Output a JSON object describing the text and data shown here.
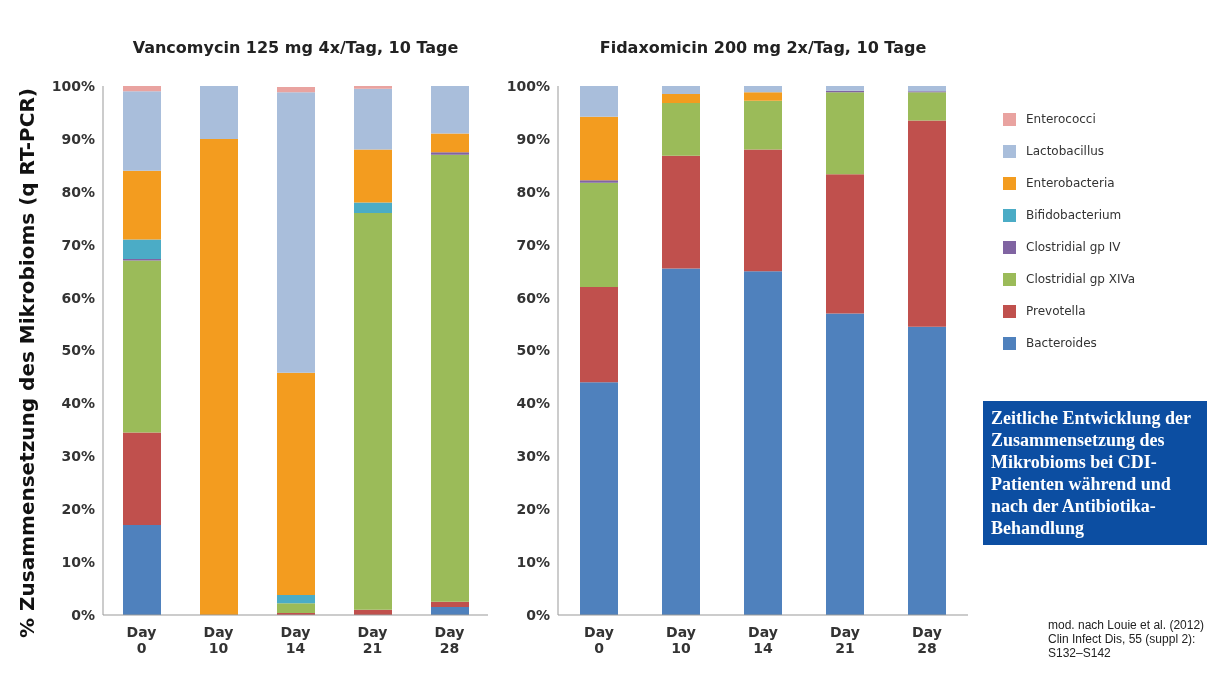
{
  "chart_data": [
    {
      "type": "bar",
      "title": "Vancomycin 125 mg 4x/Tag, 10 Tage",
      "ylabel": "% Zusammensetzung des Mikrobioms (q RT-PCR)",
      "categories": [
        "Day 0",
        "Day 10",
        "Day 14",
        "Day 21",
        "Day 28"
      ],
      "stacked": true,
      "ylim": [
        0,
        100
      ],
      "yticks": [
        {
          "value": 0,
          "label": "0%"
        },
        {
          "value": 10,
          "label": "10%"
        },
        {
          "value": 20,
          "label": "20%"
        },
        {
          "value": 30,
          "label": "30%"
        },
        {
          "value": 40,
          "label": "40%"
        },
        {
          "value": 50,
          "label": "50%"
        },
        {
          "value": 60,
          "label": "60%"
        },
        {
          "value": 70,
          "label": "70%"
        },
        {
          "value": 80,
          "label": "80%"
        },
        {
          "value": 90,
          "label": "90%"
        },
        {
          "value": 100,
          "label": "100%"
        }
      ],
      "series": [
        {
          "color": "#4f81bd",
          "values": [
            17,
            0,
            null,
            0,
            1.5
          ]
        },
        {
          "color": "#c0504d",
          "values": [
            17.5,
            0,
            0.4,
            1,
            1
          ]
        },
        {
          "color": "#9bbb59",
          "values": [
            32.5,
            0,
            1.8,
            75,
            84.5
          ]
        },
        {
          "color": "#8064a2",
          "values": [
            0.3,
            0,
            0,
            0,
            0.5
          ]
        },
        {
          "color": "#4bacc6",
          "values": [
            3.7,
            0,
            1.6,
            2,
            0
          ]
        },
        {
          "color": "#f39c1f",
          "values": [
            13,
            90,
            42,
            10,
            3.5
          ]
        },
        {
          "color": "#a9bedb",
          "values": [
            15,
            10,
            53,
            11.5,
            9
          ]
        },
        {
          "color": "#e9a3a0",
          "values": [
            1,
            0,
            1,
            0.5,
            0
          ]
        }
      ],
      "legend": false
    },
    {
      "type": "bar",
      "title": "Fidaxomicin 200 mg 2x/Tag, 10 Tage",
      "categories": [
        "Day 0",
        "Day 10",
        "Day 14",
        "Day 21",
        "Day 28"
      ],
      "stacked": true,
      "ylim": [
        0,
        100
      ],
      "yticks": [
        {
          "value": 0,
          "label": "0%"
        },
        {
          "value": 10,
          "label": "10%"
        },
        {
          "value": 20,
          "label": "20%"
        },
        {
          "value": 30,
          "label": "30%"
        },
        {
          "value": 40,
          "label": "40%"
        },
        {
          "value": 50,
          "label": "50%"
        },
        {
          "value": 60,
          "label": "60%"
        },
        {
          "value": 70,
          "label": "70%"
        },
        {
          "value": 80,
          "label": "80%"
        },
        {
          "value": 90,
          "label": "90%"
        },
        {
          "value": 100,
          "label": "100%"
        }
      ],
      "series": [
        {
          "name": "Bacteroides",
          "color": "#4f81bd",
          "values": [
            44,
            65.5,
            65,
            57,
            54.5
          ]
        },
        {
          "name": "Prevotella",
          "color": "#c0504d",
          "values": [
            18,
            21.3,
            23,
            26.3,
            39
          ]
        },
        {
          "name": "Clostridial gp XIVa",
          "color": "#9bbb59",
          "values": [
            19.7,
            10,
            9.2,
            15.5,
            5.3
          ]
        },
        {
          "name": "Clostridial gp IV",
          "color": "#8064a2",
          "values": [
            0.5,
            0,
            0,
            0.3,
            0.2
          ]
        },
        {
          "name": "Bifidobacterium",
          "color": "#4bacc6",
          "values": [
            0,
            0,
            0,
            0,
            0
          ]
        },
        {
          "name": "Enterobacteria",
          "color": "#f39c1f",
          "values": [
            12,
            1.7,
            1.6,
            0,
            0
          ]
        },
        {
          "name": "Lactobacillus",
          "color": "#a9bedb",
          "values": [
            5.8,
            1.5,
            1.2,
            0.9,
            1
          ]
        },
        {
          "name": "Enterococci",
          "color": "#e9a3a0",
          "values": [
            0,
            0,
            0,
            0,
            0
          ]
        }
      ],
      "legend": "right",
      "annotations": [
        "Zeitliche Entwicklung der Zusammensetzung des Mikrobioms bei CDI-Patienten während und nach der Antibiotika-Behandlung",
        "mod. nach Louie et al. (2012) Clin Infect Dis, 55 (suppl 2): S132–S142"
      ]
    }
  ]
}
